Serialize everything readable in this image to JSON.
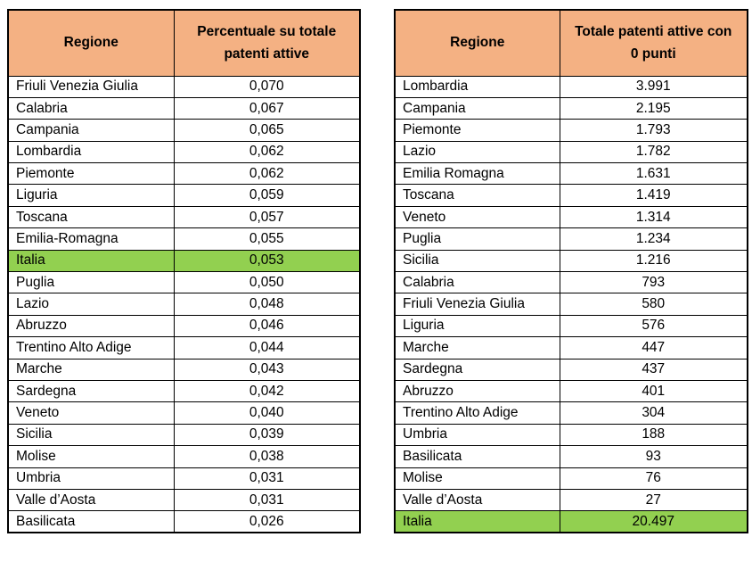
{
  "colors": {
    "header_bg": "#F4B183",
    "highlight_bg": "#92D050",
    "border": "#000000",
    "text": "#000000",
    "page_bg": "#FFFFFF"
  },
  "chart_data": [
    {
      "type": "table",
      "title": "Percentuale su totale patenti attive per Regione",
      "columns": [
        "Regione",
        "Percentuale su totale patenti attive"
      ],
      "rows": [
        {
          "region": "Friuli Venezia Giulia",
          "value": "0,070",
          "highlight": false
        },
        {
          "region": "Calabria",
          "value": "0,067",
          "highlight": false
        },
        {
          "region": "Campania",
          "value": "0,065",
          "highlight": false
        },
        {
          "region": "Lombardia",
          "value": "0,062",
          "highlight": false
        },
        {
          "region": "Piemonte",
          "value": "0,062",
          "highlight": false
        },
        {
          "region": "Liguria",
          "value": "0,059",
          "highlight": false
        },
        {
          "region": "Toscana",
          "value": "0,057",
          "highlight": false
        },
        {
          "region": "Emilia-Romagna",
          "value": "0,055",
          "highlight": false
        },
        {
          "region": "Italia",
          "value": "0,053",
          "highlight": true
        },
        {
          "region": "Puglia",
          "value": "0,050",
          "highlight": false
        },
        {
          "region": "Lazio",
          "value": "0,048",
          "highlight": false
        },
        {
          "region": "Abruzzo",
          "value": "0,046",
          "highlight": false
        },
        {
          "region": "Trentino Alto Adige",
          "value": "0,044",
          "highlight": false
        },
        {
          "region": "Marche",
          "value": "0,043",
          "highlight": false
        },
        {
          "region": "Sardegna",
          "value": "0,042",
          "highlight": false
        },
        {
          "region": "Veneto",
          "value": "0,040",
          "highlight": false
        },
        {
          "region": "Sicilia",
          "value": "0,039",
          "highlight": false
        },
        {
          "region": "Molise",
          "value": "0,038",
          "highlight": false
        },
        {
          "region": "Umbria",
          "value": "0,031",
          "highlight": false
        },
        {
          "region": "Valle d’Aosta",
          "value": "0,031",
          "highlight": false
        },
        {
          "region": "Basilicata",
          "value": "0,026",
          "highlight": false
        }
      ]
    },
    {
      "type": "table",
      "title": "Totale patenti attive con 0 punti per Regione",
      "columns": [
        "Regione",
        "Totale patenti attive con 0 punti"
      ],
      "rows": [
        {
          "region": "Lombardia",
          "value": "3.991",
          "highlight": false
        },
        {
          "region": "Campania",
          "value": "2.195",
          "highlight": false
        },
        {
          "region": "Piemonte",
          "value": "1.793",
          "highlight": false
        },
        {
          "region": "Lazio",
          "value": "1.782",
          "highlight": false
        },
        {
          "region": "Emilia Romagna",
          "value": "1.631",
          "highlight": false
        },
        {
          "region": "Toscana",
          "value": "1.419",
          "highlight": false
        },
        {
          "region": "Veneto",
          "value": "1.314",
          "highlight": false
        },
        {
          "region": "Puglia",
          "value": "1.234",
          "highlight": false
        },
        {
          "region": "Sicilia",
          "value": "1.216",
          "highlight": false
        },
        {
          "region": "Calabria",
          "value": "793",
          "highlight": false
        },
        {
          "region": "Friuli Venezia Giulia",
          "value": "580",
          "highlight": false
        },
        {
          "region": "Liguria",
          "value": "576",
          "highlight": false
        },
        {
          "region": "Marche",
          "value": "447",
          "highlight": false
        },
        {
          "region": "Sardegna",
          "value": "437",
          "highlight": false
        },
        {
          "region": "Abruzzo",
          "value": "401",
          "highlight": false
        },
        {
          "region": "Trentino Alto Adige",
          "value": "304",
          "highlight": false
        },
        {
          "region": "Umbria",
          "value": "188",
          "highlight": false
        },
        {
          "region": "Basilicata",
          "value": "93",
          "highlight": false
        },
        {
          "region": "Molise",
          "value": "76",
          "highlight": false
        },
        {
          "region": "Valle d’Aosta",
          "value": "27",
          "highlight": false
        },
        {
          "region": "Italia",
          "value": "20.497",
          "highlight": true
        }
      ]
    }
  ]
}
